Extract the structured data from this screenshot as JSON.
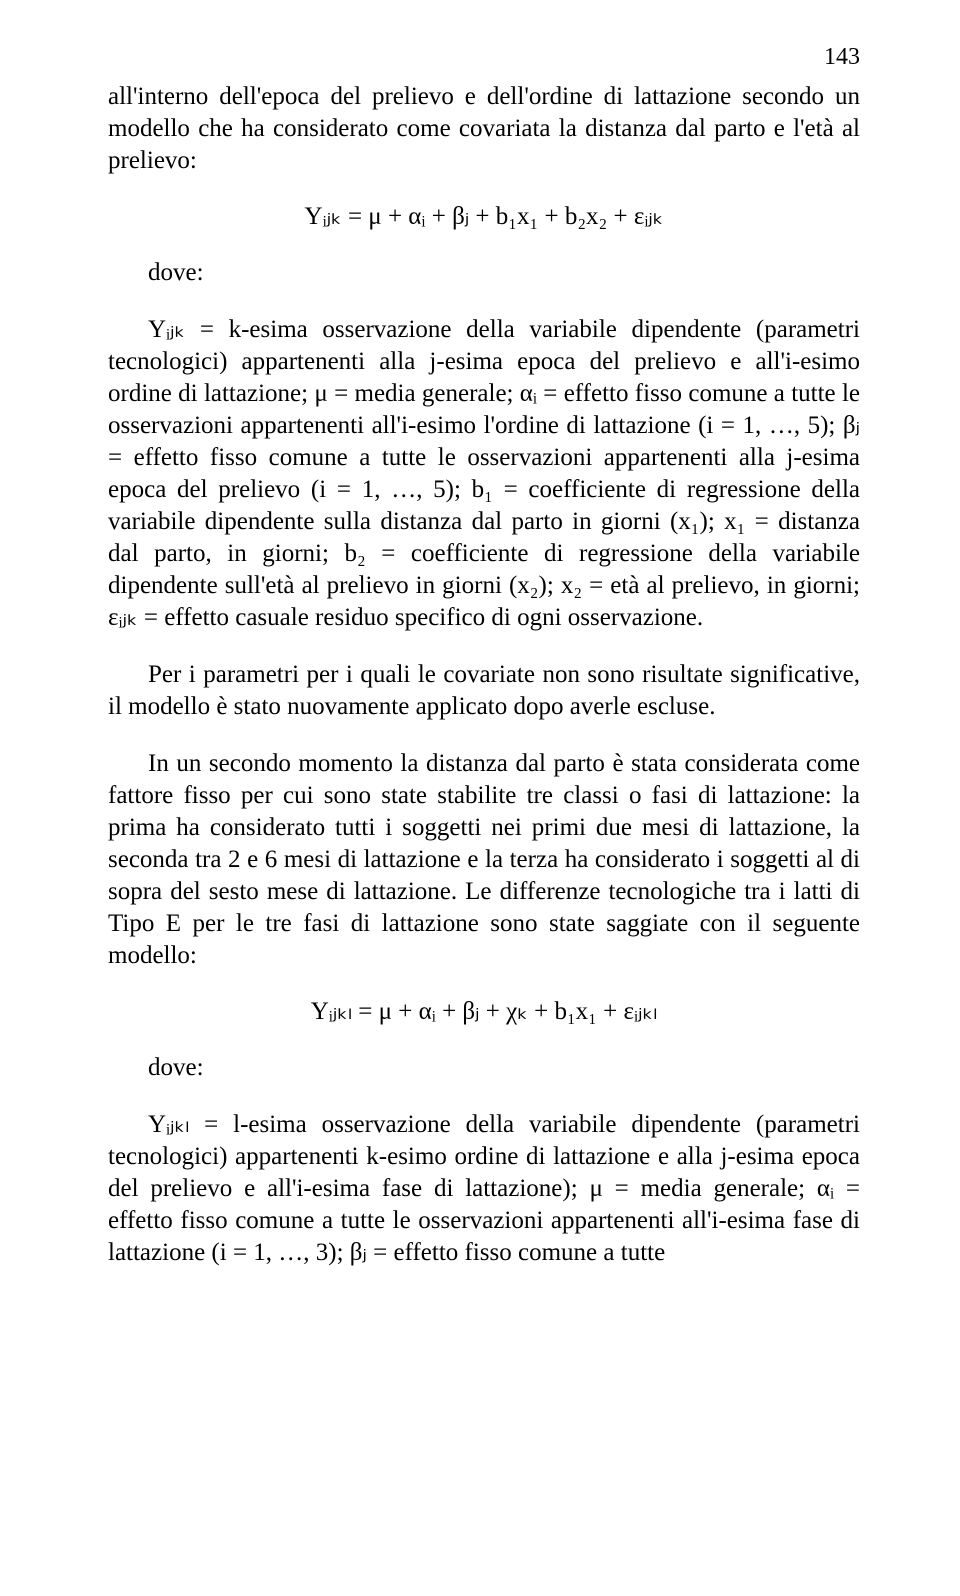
{
  "page_number": "143",
  "para1": "all'interno dell'epoca del prelievo e dell'ordine di lattazione secondo un modello che ha considerato come covariata la distanza dal parto e l'età al prelievo:",
  "eq1": "Yᵢⱼₖ = μ + αᵢ +  βⱼ + b₁x₁ + b₂x₂ + εᵢⱼₖ",
  "dove": "dove:",
  "para2": "Yᵢⱼₖ = k-esima osservazione della variabile dipendente (parametri tecnologici) appartenenti alla j-esima epoca del prelievo e all'i-esimo ordine di lattazione; μ = media generale; αᵢ = effetto fisso comune a tutte le osservazioni appartenenti all'i-esimo l'ordine di lattazione (i = 1, …, 5); βⱼ = effetto fisso comune a tutte le osservazioni appartenenti alla j-esima epoca del prelievo (i = 1, …, 5); b₁ = coefficiente di regressione della variabile dipendente sulla distanza dal parto in giorni (x₁); x₁ = distanza dal parto, in giorni; b₂ = coefficiente di regressione della variabile dipendente sull'età al prelievo in giorni (x₂); x₂ = età al prelievo, in giorni; εᵢⱼₖ = effetto casuale residuo specifico di ogni osservazione.",
  "para3": "Per i parametri per i quali le covariate non sono risultate significative, il modello è stato nuovamente applicato dopo averle escluse.",
  "para4": "In un secondo momento la distanza dal parto è stata considerata come fattore fisso per cui sono state stabilite tre classi o fasi di lattazione: la prima ha considerato tutti i soggetti nei primi due mesi di lattazione, la seconda tra 2 e 6 mesi di lattazione e la terza ha considerato i soggetti al di sopra del sesto mese di lattazione. Le differenze tecnologiche tra i latti di Tipo E per le tre fasi di lattazione sono state saggiate con il seguente modello:",
  "eq2": "Yᵢⱼₖₗ = μ + αᵢ + βⱼ + χₖ + b₁x₁ + εᵢⱼₖₗ",
  "para5": "Yᵢⱼₖₗ = l-esima osservazione della variabile dipendente (parametri tecnologici) appartenenti k-esimo ordine di lattazione e alla j-esima epoca del prelievo e all'i-esima fase di lattazione); μ = media generale; αᵢ = effetto fisso comune a tutte le osservazioni appartenenti all'i-esima fase di lattazione (i = 1, …, 3); βⱼ = effetto fisso comune a tutte"
}
